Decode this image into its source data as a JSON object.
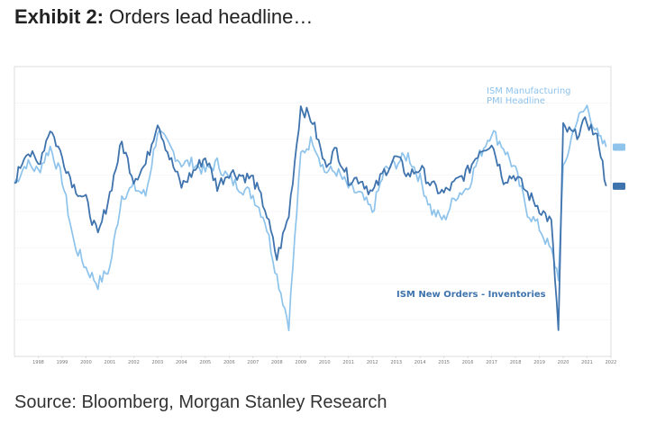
{
  "title": {
    "bold": "Exhibit 2:",
    "text": " Orders lead headline…"
  },
  "source": "Source: Bloomberg, Morgan Stanley Research",
  "colors": {
    "new_orders_inventories": "#3f73ad",
    "pmi_headline": "#8ec3ec"
  },
  "chart_data": {
    "type": "line",
    "title": "",
    "xlabel": "",
    "ylabel": "",
    "x_tick_labels": [
      "1998",
      "1999",
      "2000",
      "2001",
      "2002",
      "2003",
      "2004",
      "2005",
      "2006",
      "2007",
      "2008",
      "2009",
      "2010",
      "2011",
      "2012",
      "2013",
      "2014",
      "2015",
      "2016",
      "2017",
      "2018",
      "2019",
      "2020",
      "2021",
      "2022"
    ],
    "x": [
      1997.5,
      1998.0,
      1998.5,
      1999.0,
      1999.5,
      2000.0,
      2000.5,
      2001.0,
      2001.5,
      2002.0,
      2002.5,
      2003.0,
      2003.5,
      2004.0,
      2004.5,
      2005.0,
      2005.5,
      2006.0,
      2006.5,
      2007.0,
      2007.5,
      2008.0,
      2008.5,
      2009.0,
      2009.5,
      2010.0,
      2010.5,
      2011.0,
      2011.5,
      2012.0,
      2012.5,
      2013.0,
      2013.5,
      2014.0,
      2014.5,
      2015.0,
      2015.5,
      2016.0,
      2016.5,
      2017.0,
      2017.5,
      2018.0,
      2018.5,
      2019.0,
      2019.5,
      2020.0,
      2020.3,
      2020.5,
      2021.0,
      2021.5,
      2022.0,
      2022.3
    ],
    "series": [
      {
        "name": "ISM New Orders - Inventories",
        "values": [
          3,
          12,
          8,
          18,
          10,
          2,
          -2,
          -12,
          0,
          14,
          4,
          8,
          20,
          10,
          2,
          6,
          10,
          2,
          6,
          5,
          4,
          -4,
          -18,
          -6,
          24,
          20,
          8,
          12,
          4,
          4,
          0,
          6,
          10,
          5,
          7,
          2,
          0,
          3,
          6,
          12,
          14,
          4,
          5,
          0,
          -4,
          -8,
          -38,
          18,
          16,
          20,
          14,
          2
        ]
      },
      {
        "name": "ISM Manufacturing PMI Headline",
        "values": [
          53.5,
          56,
          55,
          58,
          54,
          46,
          43,
          41,
          43,
          52,
          53,
          52,
          60,
          58,
          56,
          56,
          55,
          56,
          54,
          53,
          52,
          49,
          42,
          36,
          57,
          59,
          55,
          55,
          53,
          52,
          50,
          55,
          56,
          57,
          54,
          50,
          49,
          52,
          53,
          57,
          60,
          58,
          55,
          50,
          48,
          45,
          42,
          55,
          61,
          63,
          59,
          58
        ]
      }
    ],
    "legend": [
      "ISM Manufacturing\nPMI Headline",
      "ISM New Orders - Inventories"
    ]
  }
}
